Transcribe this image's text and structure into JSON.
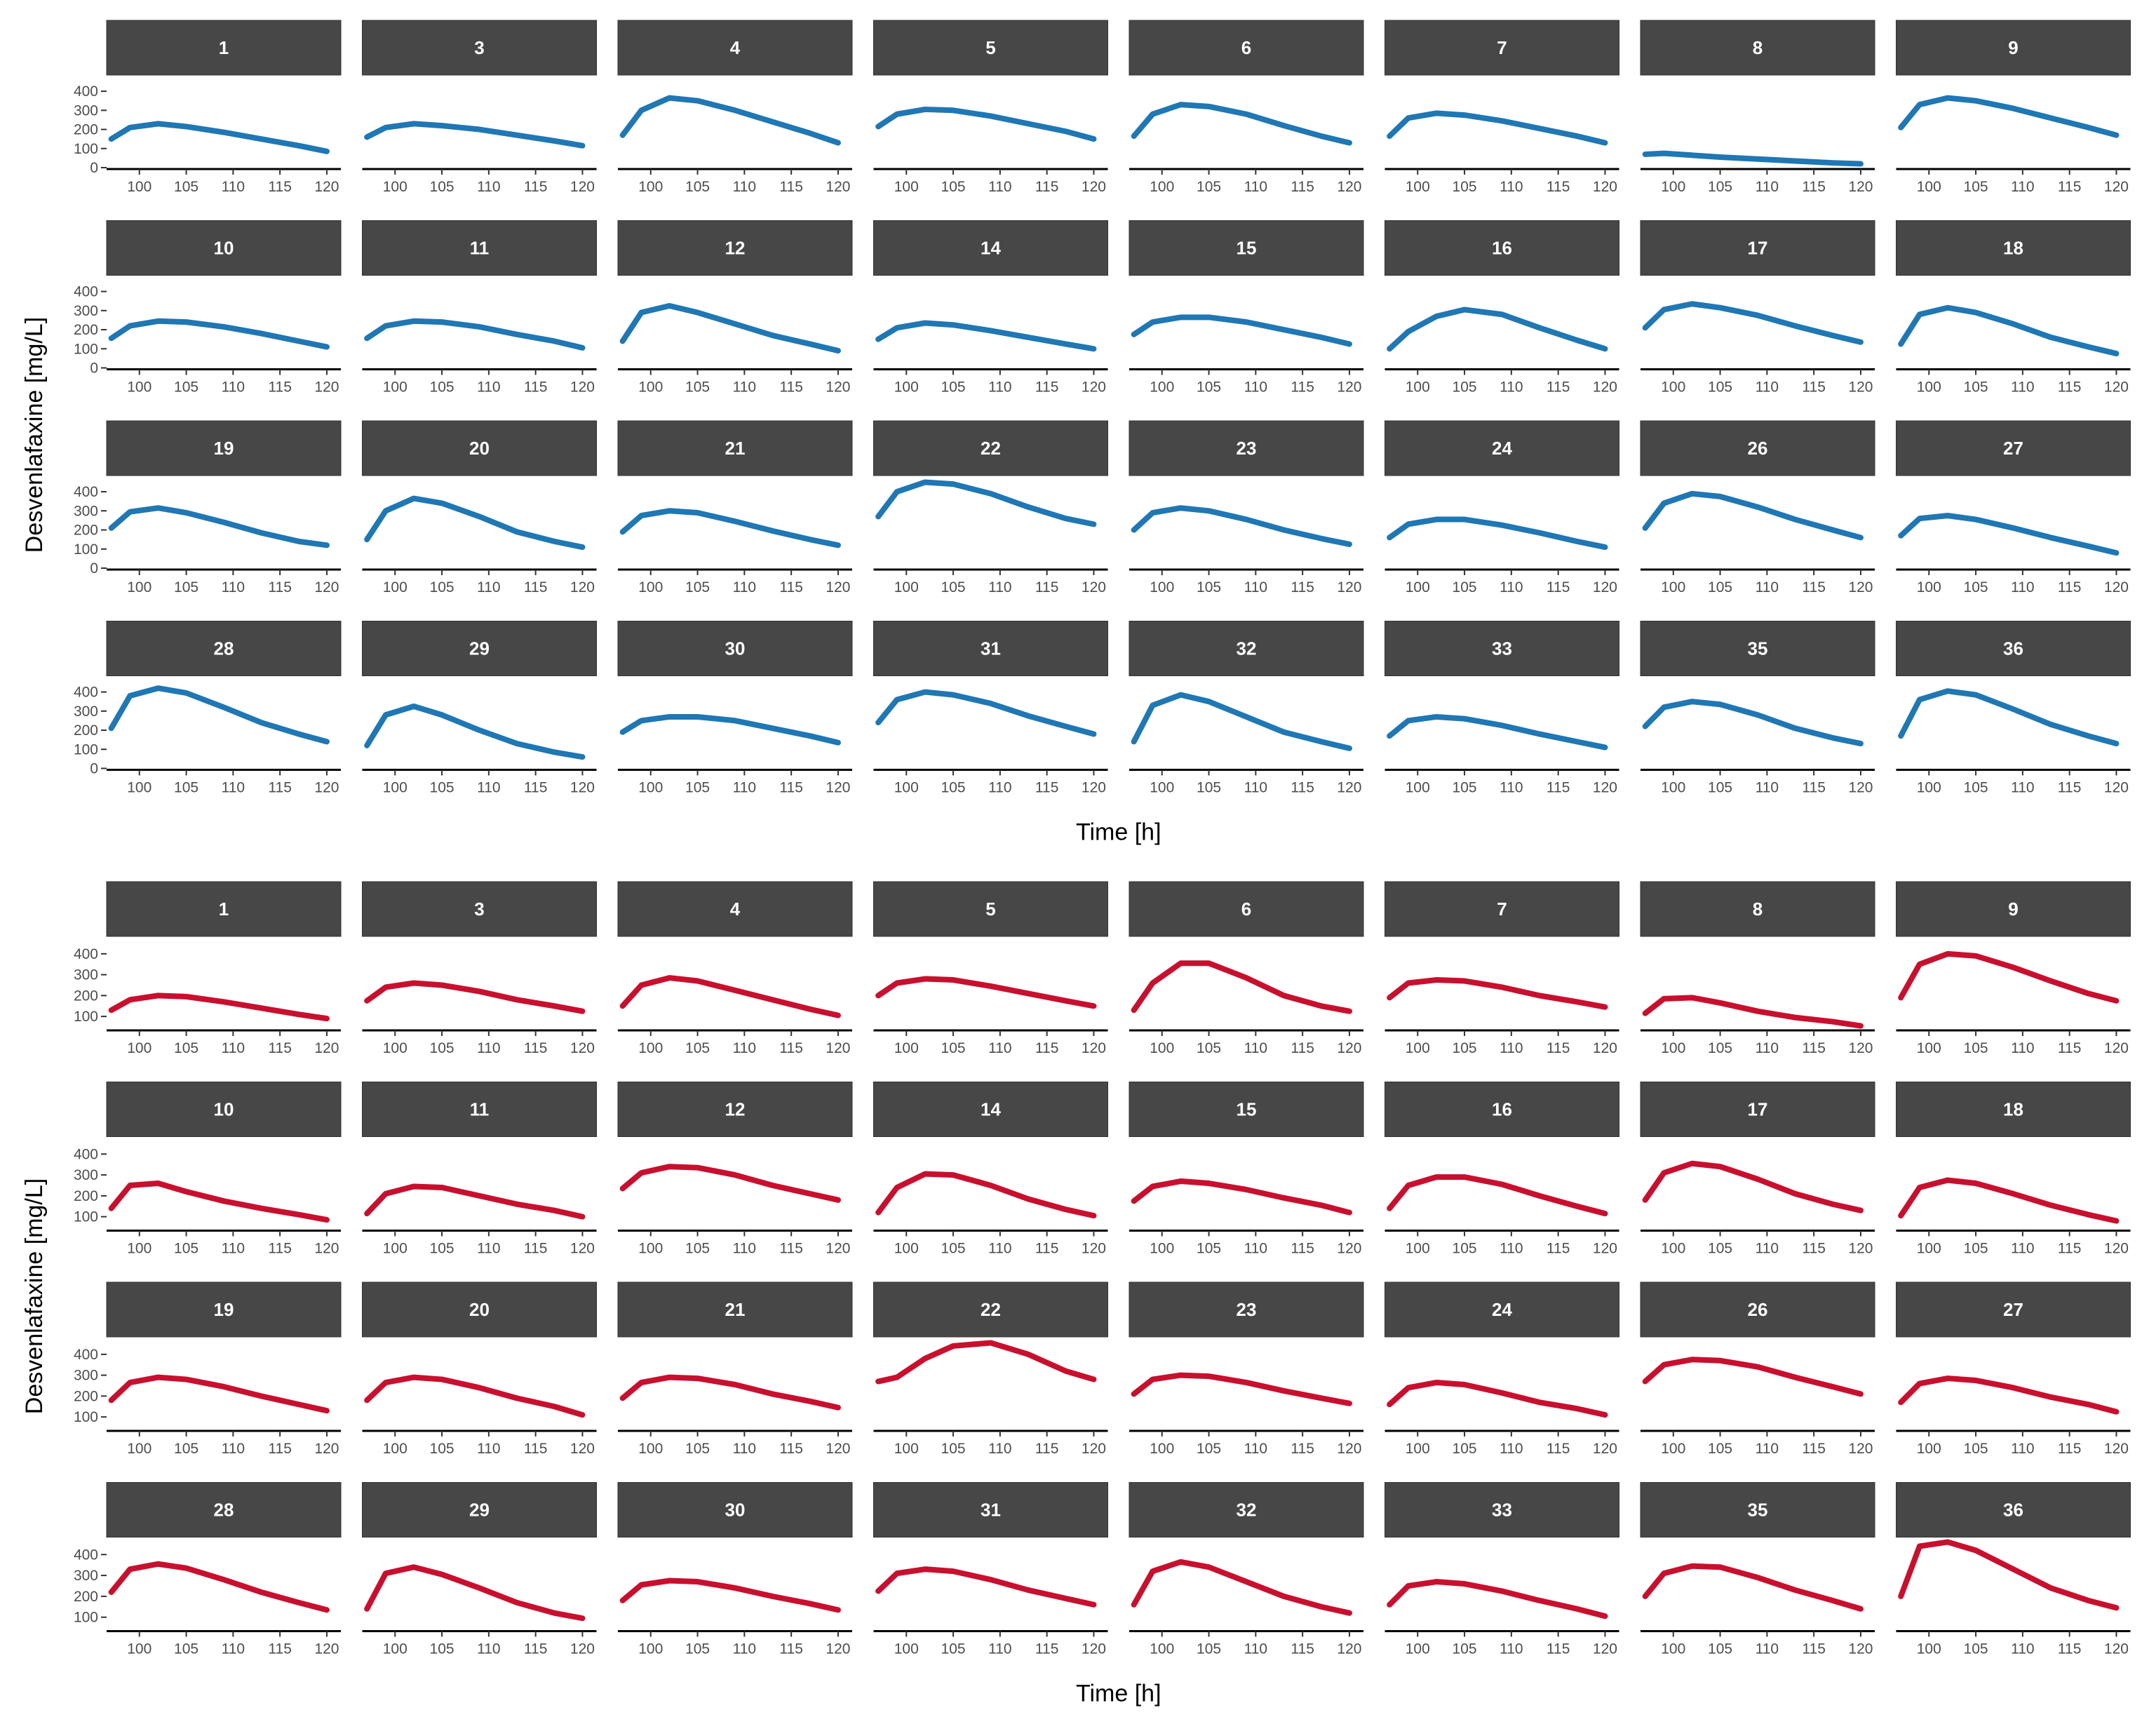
{
  "chart_data": [
    {
      "type": "line",
      "xlabel": "Time [h]",
      "ylabel": "Desvenlafaxine [mg/L]",
      "color": "#1f77b4",
      "xlim": [
        96.5,
        121.5
      ],
      "xticks": [
        100,
        105,
        110,
        115,
        120
      ],
      "ylim": [
        0,
        470
      ],
      "yticks": [
        0,
        100,
        200,
        300,
        400
      ],
      "x": [
        97,
        99,
        102,
        105,
        109,
        113,
        117,
        120
      ],
      "facets": [
        {
          "label": "1",
          "values": [
            150,
            210,
            230,
            215,
            185,
            150,
            115,
            85
          ]
        },
        {
          "label": "3",
          "values": [
            160,
            210,
            230,
            220,
            200,
            170,
            140,
            115
          ]
        },
        {
          "label": "4",
          "values": [
            170,
            300,
            365,
            350,
            300,
            240,
            180,
            130
          ]
        },
        {
          "label": "5",
          "values": [
            215,
            280,
            305,
            300,
            270,
            230,
            190,
            150
          ]
        },
        {
          "label": "6",
          "values": [
            165,
            280,
            330,
            320,
            280,
            220,
            165,
            130
          ]
        },
        {
          "label": "7",
          "values": [
            165,
            260,
            285,
            275,
            245,
            205,
            165,
            130
          ]
        },
        {
          "label": "8",
          "values": [
            70,
            75,
            65,
            55,
            45,
            35,
            25,
            20
          ]
        },
        {
          "label": "9",
          "values": [
            210,
            330,
            365,
            350,
            310,
            260,
            210,
            170
          ]
        },
        {
          "label": "10",
          "values": [
            155,
            220,
            245,
            240,
            215,
            180,
            140,
            110
          ]
        },
        {
          "label": "11",
          "values": [
            155,
            220,
            245,
            240,
            215,
            175,
            140,
            105
          ]
        },
        {
          "label": "12",
          "values": [
            140,
            290,
            325,
            290,
            230,
            170,
            125,
            90
          ]
        },
        {
          "label": "14",
          "values": [
            150,
            210,
            235,
            225,
            195,
            160,
            125,
            100
          ]
        },
        {
          "label": "15",
          "values": [
            175,
            240,
            265,
            265,
            240,
            200,
            160,
            125
          ]
        },
        {
          "label": "16",
          "values": [
            100,
            190,
            270,
            305,
            280,
            210,
            145,
            100
          ]
        },
        {
          "label": "17",
          "values": [
            210,
            305,
            335,
            315,
            275,
            220,
            170,
            135
          ]
        },
        {
          "label": "18",
          "values": [
            125,
            280,
            315,
            290,
            230,
            160,
            110,
            75
          ]
        },
        {
          "label": "19",
          "values": [
            210,
            295,
            315,
            290,
            240,
            185,
            140,
            120
          ]
        },
        {
          "label": "20",
          "values": [
            150,
            300,
            365,
            340,
            270,
            190,
            140,
            110
          ]
        },
        {
          "label": "21",
          "values": [
            190,
            275,
            300,
            290,
            245,
            195,
            150,
            120
          ]
        },
        {
          "label": "22",
          "values": [
            270,
            400,
            450,
            440,
            390,
            320,
            260,
            230
          ]
        },
        {
          "label": "23",
          "values": [
            200,
            290,
            315,
            300,
            255,
            200,
            155,
            125
          ]
        },
        {
          "label": "24",
          "values": [
            160,
            230,
            255,
            255,
            225,
            185,
            140,
            110
          ]
        },
        {
          "label": "26",
          "values": [
            210,
            340,
            390,
            375,
            320,
            255,
            200,
            160
          ]
        },
        {
          "label": "27",
          "values": [
            170,
            260,
            275,
            255,
            210,
            160,
            115,
            80
          ]
        },
        {
          "label": "28",
          "values": [
            210,
            380,
            420,
            395,
            320,
            240,
            180,
            140
          ]
        },
        {
          "label": "29",
          "values": [
            120,
            280,
            325,
            280,
            200,
            130,
            85,
            60
          ]
        },
        {
          "label": "30",
          "values": [
            190,
            250,
            270,
            270,
            250,
            210,
            170,
            135
          ]
        },
        {
          "label": "31",
          "values": [
            240,
            360,
            400,
            385,
            340,
            275,
            220,
            180
          ]
        },
        {
          "label": "32",
          "values": [
            140,
            330,
            385,
            350,
            270,
            190,
            140,
            105
          ]
        },
        {
          "label": "33",
          "values": [
            170,
            250,
            270,
            260,
            225,
            180,
            140,
            110
          ]
        },
        {
          "label": "35",
          "values": [
            220,
            320,
            350,
            335,
            280,
            210,
            160,
            130
          ]
        },
        {
          "label": "36",
          "values": [
            170,
            360,
            405,
            385,
            310,
            230,
            170,
            130
          ]
        }
      ]
    },
    {
      "type": "line",
      "xlabel": "Time [h]",
      "ylabel": "Desvenlafaxine [mg/L]",
      "color": "#c8102e",
      "xlim": [
        96.5,
        121.5
      ],
      "xticks": [
        100,
        105,
        110,
        115,
        120
      ],
      "ylim": [
        40,
        470
      ],
      "yticks": [
        100,
        200,
        300,
        400
      ],
      "x": [
        97,
        99,
        102,
        105,
        109,
        113,
        117,
        120
      ],
      "facets": [
        {
          "label": "1",
          "values": [
            130,
            180,
            200,
            195,
            170,
            140,
            110,
            90
          ]
        },
        {
          "label": "3",
          "values": [
            175,
            240,
            260,
            250,
            220,
            180,
            150,
            125
          ]
        },
        {
          "label": "4",
          "values": [
            150,
            250,
            285,
            270,
            225,
            180,
            135,
            105
          ]
        },
        {
          "label": "5",
          "values": [
            200,
            260,
            280,
            275,
            245,
            210,
            175,
            150
          ]
        },
        {
          "label": "6",
          "values": [
            130,
            260,
            355,
            355,
            285,
            200,
            150,
            125
          ]
        },
        {
          "label": "7",
          "values": [
            190,
            260,
            275,
            270,
            240,
            200,
            170,
            145
          ]
        },
        {
          "label": "8",
          "values": [
            115,
            185,
            190,
            165,
            125,
            95,
            75,
            55
          ]
        },
        {
          "label": "9",
          "values": [
            190,
            350,
            400,
            390,
            335,
            270,
            210,
            175
          ]
        },
        {
          "label": "10",
          "values": [
            140,
            250,
            260,
            220,
            175,
            140,
            110,
            85
          ]
        },
        {
          "label": "11",
          "values": [
            115,
            210,
            245,
            240,
            200,
            160,
            130,
            100
          ]
        },
        {
          "label": "12",
          "values": [
            235,
            310,
            340,
            335,
            300,
            250,
            210,
            180
          ]
        },
        {
          "label": "14",
          "values": [
            120,
            240,
            305,
            300,
            250,
            185,
            135,
            105
          ]
        },
        {
          "label": "15",
          "values": [
            175,
            245,
            270,
            260,
            230,
            190,
            155,
            120
          ]
        },
        {
          "label": "16",
          "values": [
            140,
            250,
            290,
            290,
            255,
            200,
            150,
            115
          ]
        },
        {
          "label": "17",
          "values": [
            180,
            310,
            355,
            340,
            280,
            210,
            160,
            130
          ]
        },
        {
          "label": "18",
          "values": [
            105,
            240,
            275,
            260,
            210,
            155,
            110,
            80
          ]
        },
        {
          "label": "19",
          "values": [
            180,
            265,
            290,
            280,
            245,
            200,
            160,
            130
          ]
        },
        {
          "label": "20",
          "values": [
            180,
            265,
            290,
            280,
            240,
            190,
            150,
            110
          ]
        },
        {
          "label": "21",
          "values": [
            190,
            265,
            290,
            285,
            255,
            210,
            175,
            145
          ]
        },
        {
          "label": "22",
          "values": [
            270,
            290,
            380,
            440,
            455,
            400,
            320,
            280
          ]
        },
        {
          "label": "23",
          "values": [
            210,
            280,
            300,
            295,
            265,
            225,
            190,
            165
          ]
        },
        {
          "label": "24",
          "values": [
            160,
            240,
            265,
            255,
            215,
            170,
            140,
            110
          ]
        },
        {
          "label": "26",
          "values": [
            270,
            350,
            375,
            370,
            340,
            290,
            245,
            210
          ]
        },
        {
          "label": "27",
          "values": [
            170,
            260,
            285,
            275,
            240,
            195,
            160,
            125
          ]
        },
        {
          "label": "28",
          "values": [
            220,
            330,
            355,
            335,
            280,
            220,
            170,
            135
          ]
        },
        {
          "label": "29",
          "values": [
            140,
            310,
            340,
            305,
            240,
            170,
            120,
            95
          ]
        },
        {
          "label": "30",
          "values": [
            180,
            255,
            275,
            270,
            240,
            200,
            165,
            135
          ]
        },
        {
          "label": "31",
          "values": [
            225,
            310,
            330,
            320,
            280,
            230,
            190,
            160
          ]
        },
        {
          "label": "32",
          "values": [
            160,
            320,
            365,
            340,
            270,
            200,
            150,
            120
          ]
        },
        {
          "label": "33",
          "values": [
            160,
            250,
            270,
            260,
            225,
            180,
            140,
            105
          ]
        },
        {
          "label": "35",
          "values": [
            200,
            310,
            345,
            340,
            290,
            230,
            180,
            140
          ]
        },
        {
          "label": "36",
          "values": [
            200,
            440,
            460,
            420,
            330,
            240,
            180,
            145
          ]
        }
      ]
    }
  ]
}
